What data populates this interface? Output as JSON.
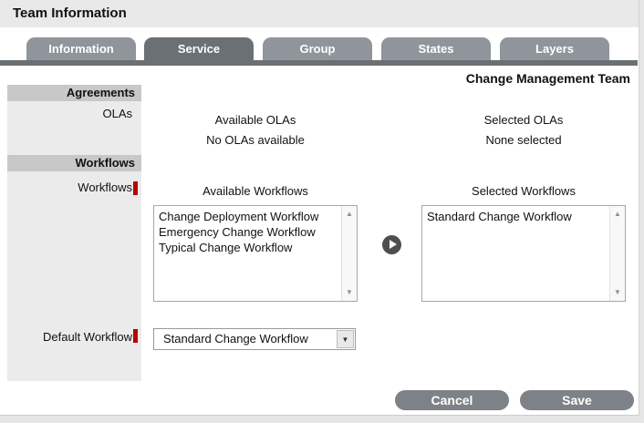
{
  "window": {
    "title": "Team Information"
  },
  "tabs": [
    {
      "label": "Information",
      "active": false
    },
    {
      "label": "Service",
      "active": true
    },
    {
      "label": "Group",
      "active": false
    },
    {
      "label": "States",
      "active": false
    },
    {
      "label": "Layers",
      "active": false
    }
  ],
  "page_heading": "Change Management Team",
  "agreements": {
    "section_header": "Agreements",
    "olas_label": "OLAs",
    "available_title": "Available OLAs",
    "available_empty": "No OLAs available",
    "selected_title": "Selected OLAs",
    "selected_empty": "None selected"
  },
  "workflows": {
    "section_header": "Workflows",
    "workflows_label": "Workflows",
    "available_title": "Available Workflows",
    "available_items": [
      "Change Deployment Workflow",
      "Emergency Change Workflow",
      "Typical Change Workflow"
    ],
    "selected_title": "Selected Workflows",
    "selected_items": [
      "Standard Change Workflow"
    ],
    "default_label": "Default Workflow",
    "default_value": "Standard Change Workflow"
  },
  "buttons": {
    "cancel": "Cancel",
    "save": "Save"
  },
  "icons": {
    "scroll_up": "▲",
    "scroll_down": "▼",
    "dropdown": "▼"
  },
  "colors": {
    "titlebar_bg": "#e9e9e9",
    "tab_active": "#6b7074",
    "tab_inactive": "#8f959a",
    "section_header_bg": "#c8c8c8",
    "sidebar_bg": "#ebebeb",
    "required_marker": "#b80000",
    "button_bg": "#7c8287"
  }
}
